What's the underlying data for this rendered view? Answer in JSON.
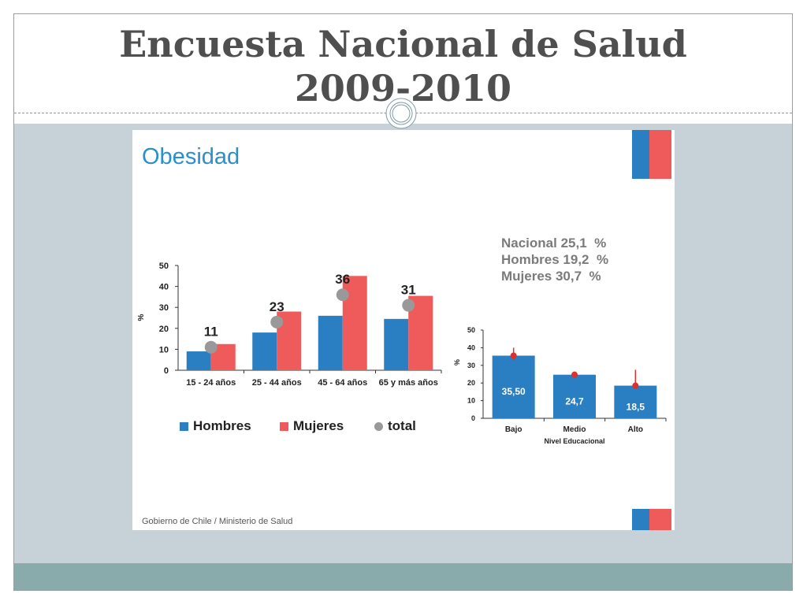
{
  "slide": {
    "title_line1": "Encuesta Nacional de Salud",
    "title_line2": "2009-2010"
  },
  "panel": {
    "heading": "Obesidad",
    "footer": "Gobierno de Chile / Ministerio de Salud",
    "summary": [
      "Nacional 25,1  %",
      "Hombres 19,2  %",
      "Mujeres 30,7  %"
    ],
    "legend": [
      {
        "label": "Hombres",
        "color": "#2a7fc2",
        "shape": "square"
      },
      {
        "label": "Mujeres",
        "color": "#ef5a5a",
        "shape": "square"
      },
      {
        "label": "total",
        "color": "#999999",
        "shape": "circle"
      }
    ],
    "flag_colors": {
      "blue": "#2a7fc2",
      "red": "#ef5a5a"
    }
  },
  "chart_data": [
    {
      "type": "bar",
      "ylabel": "%",
      "ylim": [
        0,
        50
      ],
      "yticks": [
        0,
        10,
        20,
        30,
        40,
        50
      ],
      "categories": [
        "15 - 24 años",
        "25 - 44 años",
        "45 - 64 años",
        "65 y más años"
      ],
      "series": [
        {
          "name": "Hombres",
          "color": "#2a7fc2",
          "values": [
            9,
            18,
            26,
            24.5
          ]
        },
        {
          "name": "Mujeres",
          "color": "#ef5a5a",
          "values": [
            12.5,
            28,
            45,
            35.5
          ]
        }
      ],
      "total": {
        "name": "total",
        "color": "#999999",
        "values": [
          11,
          23,
          36,
          31
        ],
        "labels": [
          "11",
          "23",
          "36",
          "31"
        ]
      },
      "grid": false
    },
    {
      "type": "bar",
      "ylabel": "%",
      "xlabel": "Nivel Educacional",
      "ylim": [
        0,
        50
      ],
      "yticks": [
        0,
        10,
        20,
        30,
        40,
        50
      ],
      "categories": [
        "Bajo",
        "Medio",
        "Alto"
      ],
      "values": [
        35.5,
        24.7,
        18.5
      ],
      "labels": [
        "35,50",
        "24,7",
        "18,5"
      ],
      "error_high": [
        40,
        26.5,
        27.5
      ],
      "error_low": [
        33,
        23.5,
        17.5
      ],
      "bar_color": "#2a7fc2",
      "point_color": "#d9312b",
      "grid": false
    }
  ]
}
